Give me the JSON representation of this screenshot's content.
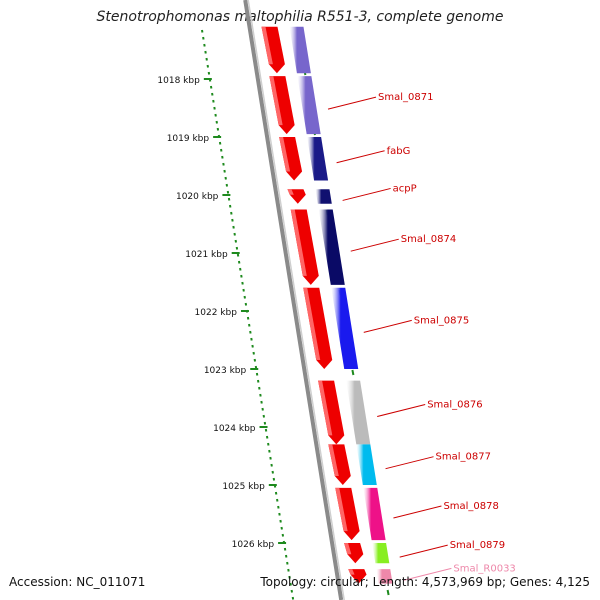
{
  "title": "Stenotrophomonas maltophilia R551-3, complete genome",
  "accession_text": "Accession: NC_011071",
  "topology_text": "Topology: circular; Length: 4,573,969 bp; Genes: 4,125",
  "colors": {
    "backbone": "#8a8a8a",
    "ticks": "#1e8a1e",
    "gene_red": "#ee0000",
    "label_red": "#cc0000",
    "label_pink": "#ee88aa"
  },
  "scale": {
    "unit": "kbp",
    "ticks": [
      {
        "kbp": 1018,
        "label": "1018 kbp"
      },
      {
        "kbp": 1019,
        "label": "1019 kbp"
      },
      {
        "kbp": 1020,
        "label": "1020 kbp"
      },
      {
        "kbp": 1021,
        "label": "1021 kbp"
      },
      {
        "kbp": 1022,
        "label": "1022 kbp"
      },
      {
        "kbp": 1023,
        "label": "1023 kbp"
      },
      {
        "kbp": 1024,
        "label": "1024 kbp"
      },
      {
        "kbp": 1025,
        "label": "1025 kbp"
      },
      {
        "kbp": 1026,
        "label": "1026 kbp"
      }
    ]
  },
  "genes": [
    {
      "label": "",
      "start": 1017.1,
      "end": 1017.9,
      "color": "#7766cc"
    },
    {
      "label": "Smal_0871",
      "start": 1017.95,
      "end": 1018.95,
      "color": "#7766cc"
    },
    {
      "label": "fabG",
      "start": 1019.0,
      "end": 1019.75,
      "color": "#1a1a88"
    },
    {
      "label": "acpP",
      "start": 1019.9,
      "end": 1020.15,
      "color": "#101070"
    },
    {
      "label": "Smal_0874",
      "start": 1020.25,
      "end": 1021.55,
      "color": "#0a0a66"
    },
    {
      "label": "Smal_0875",
      "start": 1021.6,
      "end": 1023.0,
      "color": "#1a1aee"
    },
    {
      "label": "Smal_0876",
      "start": 1023.2,
      "end": 1024.3,
      "color": "#bbbbbb"
    },
    {
      "label": "Smal_0877",
      "start": 1024.3,
      "end": 1025.0,
      "color": "#00bbee"
    },
    {
      "label": "Smal_0878",
      "start": 1025.05,
      "end": 1025.95,
      "color": "#ee1188"
    },
    {
      "label": "Smal_0879",
      "start": 1026.0,
      "end": 1026.35,
      "color": "#88ee22"
    },
    {
      "label": "Smal_R0033",
      "start": 1026.45,
      "end": 1026.7,
      "color": "#ee88aa",
      "label_color": "#ee88aa"
    }
  ]
}
